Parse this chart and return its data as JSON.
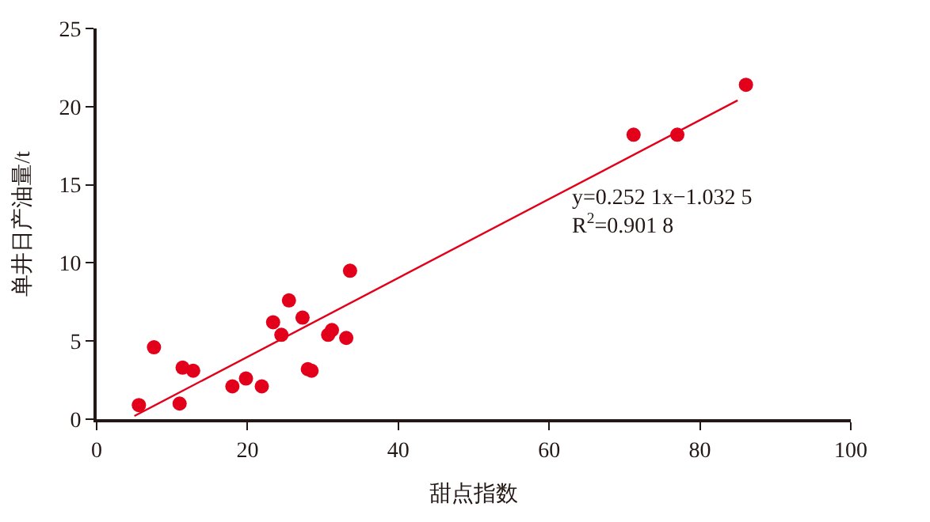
{
  "chart_data": {
    "type": "scatter",
    "xlabel": "甜点指数",
    "ylabel": "单井日产油量/t",
    "xlim": [
      0,
      100
    ],
    "xticks": [
      0,
      20,
      40,
      60,
      80,
      100
    ],
    "ylim": [
      0,
      25
    ],
    "yticks": [
      0,
      5,
      10,
      15,
      20,
      25
    ],
    "series": [
      {
        "marker": "circle",
        "color": "#e2001a",
        "x": [
          5.6,
          7.6,
          11.0,
          11.4,
          12.8,
          18.0,
          19.8,
          21.9,
          23.4,
          24.5,
          25.5,
          27.3,
          28.0,
          28.5,
          30.7,
          31.2,
          33.1,
          33.6,
          71.2,
          77.0,
          86.1
        ],
        "values": [
          0.9,
          4.6,
          1.0,
          3.3,
          3.1,
          2.1,
          2.6,
          2.1,
          6.2,
          5.4,
          7.6,
          6.5,
          3.2,
          3.1,
          5.4,
          5.7,
          5.2,
          9.5,
          18.2,
          18.2,
          21.4
        ]
      },
      {
        "type": "line",
        "marker": "none",
        "color": "#e2001a",
        "x": [
          5.0,
          85.0
        ],
        "values": [
          0.2,
          20.4
        ]
      }
    ],
    "annotations": [
      "y=0.252 1x−1.032 5",
      "R$^{2}$=0.901 8"
    ]
  }
}
